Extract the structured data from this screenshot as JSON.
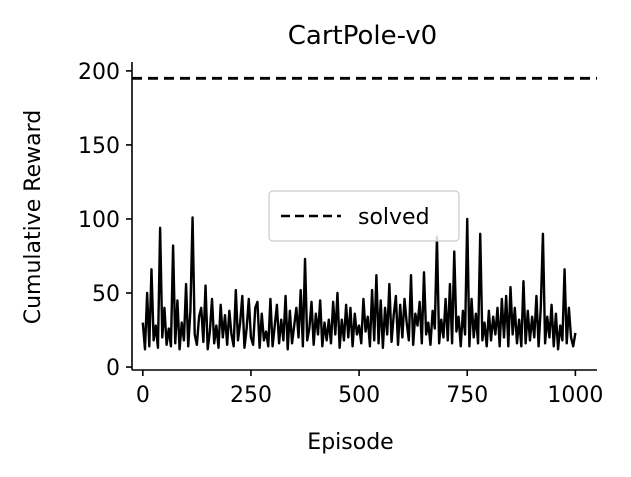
{
  "chart_data": {
    "type": "line",
    "title": "CartPole-v0",
    "xlabel": "Episode",
    "ylabel": "Cumulative Reward",
    "xlim": [
      -25,
      1050
    ],
    "ylim": [
      -2,
      206
    ],
    "xticks": [
      0,
      250,
      500,
      750,
      1000
    ],
    "yticks": [
      0,
      50,
      100,
      150,
      200
    ],
    "grid": false,
    "legend": {
      "position": "center",
      "entries": [
        "solved"
      ]
    },
    "reference_lines": [
      {
        "name": "solved",
        "y": 195,
        "style": "dashed",
        "color": "#000000"
      }
    ],
    "series": [
      {
        "color": "#000000",
        "x": [
          0,
          5,
          10,
          15,
          20,
          25,
          30,
          35,
          40,
          45,
          50,
          55,
          60,
          65,
          70,
          75,
          80,
          85,
          90,
          95,
          100,
          105,
          110,
          115,
          120,
          125,
          130,
          135,
          140,
          145,
          150,
          155,
          160,
          165,
          170,
          175,
          180,
          185,
          190,
          195,
          200,
          205,
          210,
          215,
          220,
          225,
          230,
          235,
          240,
          245,
          250,
          255,
          260,
          265,
          270,
          275,
          280,
          285,
          290,
          295,
          300,
          305,
          310,
          315,
          320,
          325,
          330,
          335,
          340,
          345,
          350,
          355,
          360,
          365,
          370,
          375,
          380,
          385,
          390,
          395,
          400,
          405,
          410,
          415,
          420,
          425,
          430,
          435,
          440,
          445,
          450,
          455,
          460,
          465,
          470,
          475,
          480,
          485,
          490,
          495,
          500,
          505,
          510,
          515,
          520,
          525,
          530,
          535,
          540,
          545,
          550,
          555,
          560,
          565,
          570,
          575,
          580,
          585,
          590,
          595,
          600,
          605,
          610,
          615,
          620,
          625,
          630,
          635,
          640,
          645,
          650,
          655,
          660,
          665,
          670,
          675,
          680,
          685,
          690,
          695,
          700,
          705,
          710,
          715,
          720,
          725,
          730,
          735,
          740,
          745,
          750,
          755,
          760,
          765,
          770,
          775,
          780,
          785,
          790,
          795,
          800,
          805,
          810,
          815,
          820,
          825,
          830,
          835,
          840,
          845,
          850,
          855,
          860,
          865,
          870,
          875,
          880,
          885,
          890,
          895,
          900,
          905,
          910,
          915,
          920,
          925,
          930,
          935,
          940,
          945,
          950,
          955,
          960,
          965,
          970,
          975,
          980,
          985,
          990,
          995,
          1000
        ],
        "y": [
          30,
          12,
          50,
          14,
          66,
          18,
          28,
          13,
          94,
          20,
          40,
          15,
          26,
          14,
          82,
          16,
          45,
          12,
          30,
          18,
          56,
          14,
          38,
          101,
          22,
          15,
          34,
          40,
          17,
          55,
          12,
          24,
          46,
          16,
          28,
          13,
          42,
          20,
          35,
          15,
          38,
          22,
          14,
          52,
          18,
          30,
          48,
          13,
          26,
          46,
          20,
          15,
          40,
          44,
          13,
          36,
          18,
          24,
          14,
          46,
          14,
          28,
          42,
          16,
          32,
          18,
          48,
          12,
          38,
          16,
          28,
          40,
          20,
          52,
          14,
          73,
          18,
          26,
          44,
          15,
          36,
          22,
          45,
          14,
          30,
          18,
          32,
          16,
          44,
          22,
          50,
          13,
          32,
          18,
          42,
          20,
          40,
          14,
          36,
          22,
          28,
          16,
          46,
          24,
          34,
          14,
          52,
          18,
          62,
          16,
          45,
          13,
          40,
          22,
          56,
          17,
          35,
          48,
          15,
          42,
          20,
          46,
          30,
          18,
          62,
          15,
          36,
          28,
          44,
          16,
          64,
          22,
          30,
          15,
          38,
          26,
          88,
          16,
          32,
          20,
          46,
          18,
          56,
          16,
          78,
          24,
          34,
          14,
          38,
          22,
          100,
          14,
          46,
          20,
          36,
          16,
          90,
          18,
          30,
          14,
          38,
          18,
          34,
          22,
          40,
          14,
          46,
          20,
          48,
          14,
          54,
          22,
          40,
          16,
          32,
          14,
          58,
          16,
          38,
          18,
          34,
          20,
          48,
          14,
          40,
          90,
          16,
          34,
          20,
          42,
          14,
          36,
          12,
          28,
          18,
          66,
          16,
          40,
          20,
          14,
          23
        ]
      }
    ]
  }
}
